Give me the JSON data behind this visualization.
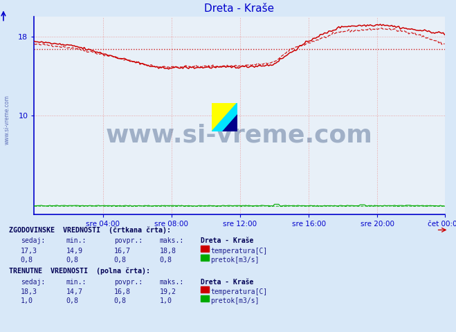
{
  "title": "Dreta - Kraše",
  "title_color": "#0000cc",
  "bg_color": "#d8e8f8",
  "plot_bg_color": "#e8f0f8",
  "grid_color": "#e8a0a0",
  "axis_color": "#0000cc",
  "xlabel_ticks": [
    "sre 04:00",
    "sre 08:00",
    "sre 12:00",
    "sre 16:00",
    "sre 20:00",
    "čet 00:00"
  ],
  "yticks": [
    10,
    18
  ],
  "ymin": 0,
  "ymax": 20,
  "xmin": 0,
  "xmax": 287,
  "temp_color": "#cc0000",
  "pretok_color": "#00aa00",
  "watermark_text": "www.si-vreme.com",
  "watermark_color": "#1a3a6e",
  "watermark_alpha": 0.35,
  "hist_avg": 16.7,
  "hist_sedaj": 17.3,
  "hist_min": 14.9,
  "hist_povpr": 16.7,
  "hist_maks": 18.8,
  "hist_pretok_sedaj": "0,8",
  "hist_pretok_min": "0,8",
  "hist_pretok_povpr": "0,8",
  "hist_pretok_maks": "0,8",
  "curr_sedaj": 18.3,
  "curr_min": 14.7,
  "curr_povpr": 16.8,
  "curr_maks": 19.2,
  "curr_pretok_sedaj": "1,0",
  "curr_pretok_min": "0,8",
  "curr_pretok_povpr": "0,8",
  "curr_pretok_maks": "1,0",
  "label_color": "#1a1a8c",
  "bold_color": "#000055"
}
